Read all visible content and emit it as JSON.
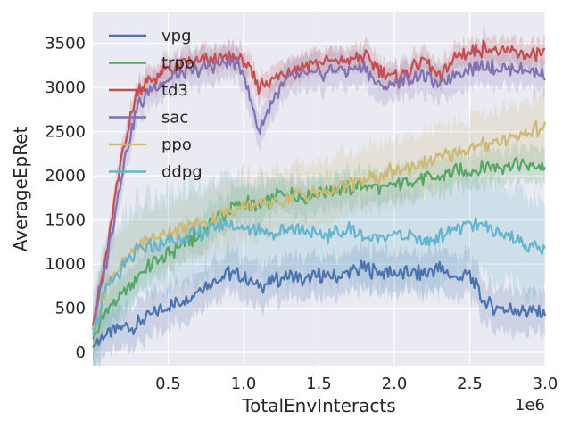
{
  "chart_data": {
    "type": "line",
    "title": "",
    "xlabel": "TotalEnvInteracts",
    "ylabel": "AverageEpRet",
    "x_multiplier_label": "1e6",
    "xlim": [
      0.0,
      3.0
    ],
    "ylim": [
      -150,
      3850
    ],
    "x_ticks": [
      0.5,
      1.0,
      1.5,
      2.0,
      2.5,
      3.0
    ],
    "x_tick_labels": [
      "0.5",
      "1.0",
      "1.5",
      "2.0",
      "2.5",
      "3.0"
    ],
    "y_ticks": [
      0,
      500,
      1000,
      1500,
      2000,
      2500,
      3000,
      3500
    ],
    "y_tick_labels": [
      "0",
      "500",
      "1000",
      "1500",
      "2000",
      "2500",
      "3000",
      "3500"
    ],
    "grid": true,
    "legend_position": "top-left",
    "shaded_bands": true,
    "x": [
      0.0,
      0.1,
      0.2,
      0.3,
      0.4,
      0.5,
      0.6,
      0.7,
      0.8,
      0.9,
      1.0,
      1.1,
      1.2,
      1.3,
      1.4,
      1.5,
      1.6,
      1.7,
      1.8,
      1.9,
      2.0,
      2.1,
      2.2,
      2.3,
      2.4,
      2.5,
      2.6,
      2.7,
      2.8,
      2.9,
      3.0
    ],
    "series": [
      {
        "name": "vpg",
        "color": "#4c72b0",
        "values": [
          60,
          230,
          270,
          320,
          420,
          520,
          600,
          700,
          820,
          900,
          850,
          750,
          800,
          880,
          820,
          880,
          850,
          900,
          950,
          900,
          900,
          880,
          900,
          950,
          850,
          870,
          560,
          500,
          480,
          470,
          460
        ],
        "band": 300
      },
      {
        "name": "trpo",
        "color": "#55a868",
        "values": [
          150,
          500,
          650,
          870,
          1000,
          1100,
          1250,
          1300,
          1500,
          1600,
          1700,
          1650,
          1750,
          1800,
          1750,
          1800,
          1850,
          1850,
          1900,
          1850,
          1900,
          1950,
          1950,
          2000,
          2050,
          2050,
          2100,
          2100,
          2150,
          2100,
          2100
        ],
        "band": 250
      },
      {
        "name": "td3",
        "color": "#c44e52",
        "values": [
          300,
          1200,
          2300,
          3000,
          3100,
          3200,
          3250,
          3300,
          3300,
          3350,
          3300,
          3000,
          3100,
          3200,
          3250,
          3300,
          3300,
          3300,
          3350,
          3200,
          3100,
          3200,
          3300,
          3100,
          3350,
          3400,
          3450,
          3400,
          3400,
          3350,
          3380
        ],
        "band": 180
      },
      {
        "name": "sac",
        "color": "#8172b2",
        "values": [
          250,
          1100,
          2100,
          2800,
          3000,
          3100,
          3150,
          3200,
          3250,
          3300,
          3200,
          2500,
          2900,
          3100,
          3150,
          3150,
          3200,
          3200,
          3250,
          3000,
          3050,
          3100,
          3150,
          3000,
          3150,
          3200,
          3250,
          3200,
          3200,
          3200,
          3150
        ],
        "band": 250
      },
      {
        "name": "ppo",
        "color": "#ccb974",
        "values": [
          250,
          800,
          1000,
          1200,
          1300,
          1350,
          1400,
          1450,
          1500,
          1600,
          1650,
          1650,
          1700,
          1750,
          1800,
          1800,
          1850,
          1900,
          1950,
          2000,
          2050,
          2100,
          2150,
          2200,
          2250,
          2300,
          2350,
          2400,
          2450,
          2500,
          2550
        ],
        "band": 450
      },
      {
        "name": "ddpg",
        "color": "#64b5cd",
        "values": [
          200,
          750,
          950,
          1150,
          1200,
          1250,
          1300,
          1350,
          1400,
          1450,
          1400,
          1400,
          1350,
          1400,
          1400,
          1300,
          1350,
          1400,
          1300,
          1300,
          1350,
          1300,
          1250,
          1300,
          1400,
          1450,
          1400,
          1350,
          1300,
          1200,
          1150
        ],
        "band": 700
      }
    ]
  }
}
